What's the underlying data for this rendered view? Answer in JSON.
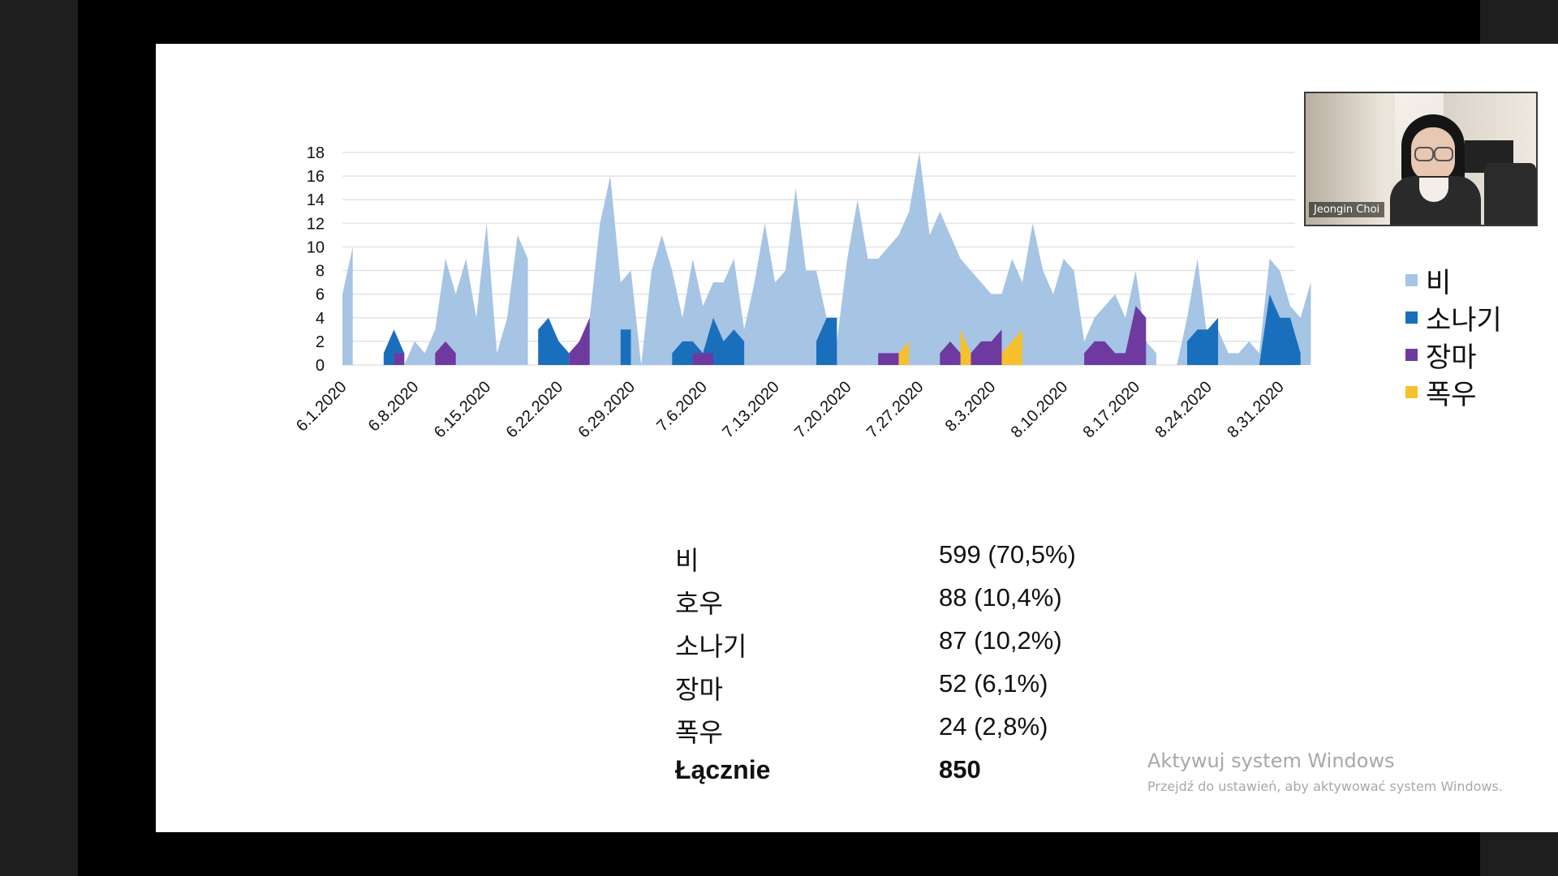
{
  "participant": {
    "name": "Jeongin Choi"
  },
  "watermark": {
    "title": "Aktywuj system Windows",
    "subtitle": "Przejdź do ustawień, aby aktywować system Windows."
  },
  "stats": [
    {
      "label": "비",
      "value": "599 (70,5%)"
    },
    {
      "label": "호우",
      "value": "88 (10,4%)"
    },
    {
      "label": "소나기",
      "value": "87 (10,2%)"
    },
    {
      "label": "장마",
      "value": "52 (6,1%)"
    },
    {
      "label": "폭우",
      "value": "24 (2,8%)"
    },
    {
      "label": "Łącznie",
      "value": "850"
    }
  ],
  "chart_data": {
    "type": "area",
    "grid": true,
    "legend_position": "right",
    "ylim": [
      0,
      18
    ],
    "yticks": [
      0,
      2,
      4,
      6,
      8,
      10,
      12,
      14,
      16,
      18
    ],
    "x_range": [
      0,
      92
    ],
    "xticks": [
      {
        "x": 0,
        "label": "6.1.2020"
      },
      {
        "x": 7,
        "label": "6.8.2020"
      },
      {
        "x": 14,
        "label": "6.15.2020"
      },
      {
        "x": 21,
        "label": "6.22.2020"
      },
      {
        "x": 28,
        "label": "6.29.2020"
      },
      {
        "x": 35,
        "label": "7.6.2020"
      },
      {
        "x": 42,
        "label": "7.13.2020"
      },
      {
        "x": 49,
        "label": "7.20.2020"
      },
      {
        "x": 56,
        "label": "7.27.2020"
      },
      {
        "x": 63,
        "label": "8.3.2020"
      },
      {
        "x": 70,
        "label": "8.10.2020"
      },
      {
        "x": 77,
        "label": "8.17.2020"
      },
      {
        "x": 84,
        "label": "8.24.2020"
      },
      {
        "x": 91,
        "label": "8.31.2020"
      }
    ],
    "series": [
      {
        "name": "비",
        "color": "#a6c4e4",
        "points": [
          [
            0,
            6
          ],
          [
            1,
            10
          ],
          [
            1,
            0
          ],
          [
            6,
            0
          ],
          [
            7,
            2
          ],
          [
            8,
            1
          ],
          [
            9,
            3
          ],
          [
            10,
            9
          ],
          [
            11,
            6
          ],
          [
            12,
            9
          ],
          [
            13,
            4
          ],
          [
            14,
            12
          ],
          [
            15,
            1
          ],
          [
            16,
            4
          ],
          [
            17,
            11
          ],
          [
            18,
            9
          ],
          [
            18,
            0
          ],
          [
            22,
            0
          ],
          [
            23,
            2
          ],
          [
            24,
            4
          ],
          [
            25,
            12
          ],
          [
            26,
            16
          ],
          [
            27,
            7
          ],
          [
            28,
            8
          ],
          [
            29,
            0
          ],
          [
            30,
            8
          ],
          [
            31,
            11
          ],
          [
            32,
            8
          ],
          [
            33,
            4
          ],
          [
            34,
            9
          ],
          [
            35,
            5
          ],
          [
            36,
            7
          ],
          [
            37,
            7
          ],
          [
            38,
            9
          ],
          [
            39,
            3
          ],
          [
            40,
            7
          ],
          [
            41,
            12
          ],
          [
            42,
            7
          ],
          [
            43,
            8
          ],
          [
            44,
            15
          ],
          [
            45,
            8
          ],
          [
            46,
            8
          ],
          [
            47,
            4
          ],
          [
            48,
            2
          ],
          [
            49,
            9
          ],
          [
            50,
            14
          ],
          [
            51,
            9
          ],
          [
            52,
            9
          ],
          [
            53,
            10
          ],
          [
            54,
            11
          ],
          [
            55,
            13
          ],
          [
            56,
            18
          ],
          [
            57,
            11
          ],
          [
            58,
            13
          ],
          [
            59,
            11
          ],
          [
            60,
            9
          ],
          [
            61,
            8
          ],
          [
            62,
            7
          ],
          [
            63,
            6
          ],
          [
            64,
            6
          ],
          [
            65,
            9
          ],
          [
            66,
            7
          ],
          [
            67,
            12
          ],
          [
            68,
            8
          ],
          [
            69,
            6
          ],
          [
            70,
            9
          ],
          [
            71,
            8
          ],
          [
            72,
            2
          ],
          [
            73,
            4
          ],
          [
            74,
            5
          ],
          [
            75,
            6
          ],
          [
            76,
            4
          ],
          [
            77,
            8
          ],
          [
            78,
            2
          ],
          [
            79,
            1
          ],
          [
            79,
            0
          ],
          [
            81,
            0
          ],
          [
            82,
            4
          ],
          [
            83,
            9
          ],
          [
            84,
            2
          ],
          [
            85,
            3
          ],
          [
            86,
            1
          ],
          [
            87,
            1
          ],
          [
            88,
            2
          ],
          [
            89,
            1
          ],
          [
            90,
            9
          ],
          [
            91,
            8
          ],
          [
            92,
            5
          ],
          [
            93,
            4
          ],
          [
            94,
            7
          ],
          [
            94,
            0
          ]
        ]
      },
      {
        "name": "소나기",
        "color": "#1a6fbd",
        "points": [
          [
            4,
            0
          ],
          [
            4,
            1
          ],
          [
            5,
            3
          ],
          [
            6,
            1
          ],
          [
            6,
            0
          ]
        ]
      },
      {
        "name": "소나기",
        "color": "#1a6fbd",
        "points": [
          [
            19,
            0
          ],
          [
            19,
            3
          ],
          [
            20,
            4
          ],
          [
            21,
            2
          ],
          [
            22,
            1
          ],
          [
            22,
            0
          ]
        ]
      },
      {
        "name": "소나기",
        "color": "#1a6fbd",
        "points": [
          [
            27,
            0
          ],
          [
            27,
            3
          ],
          [
            28,
            3
          ],
          [
            28,
            0
          ]
        ]
      },
      {
        "name": "소나기",
        "color": "#1a6fbd",
        "points": [
          [
            32,
            0
          ],
          [
            32,
            1
          ],
          [
            33,
            2
          ],
          [
            34,
            2
          ],
          [
            35,
            1
          ],
          [
            36,
            4
          ],
          [
            37,
            2
          ],
          [
            38,
            3
          ],
          [
            39,
            2
          ],
          [
            39,
            0
          ]
        ]
      },
      {
        "name": "소나기",
        "color": "#1a6fbd",
        "points": [
          [
            46,
            0
          ],
          [
            46,
            2
          ],
          [
            47,
            4
          ],
          [
            48,
            4
          ],
          [
            48,
            0
          ]
        ]
      },
      {
        "name": "소나기",
        "color": "#1a6fbd",
        "points": [
          [
            82,
            0
          ],
          [
            82,
            2
          ],
          [
            83,
            3
          ],
          [
            84,
            3
          ],
          [
            85,
            4
          ],
          [
            85,
            0
          ]
        ]
      },
      {
        "name": "소나기",
        "color": "#1a6fbd",
        "points": [
          [
            89,
            0
          ],
          [
            90,
            6
          ],
          [
            91,
            4
          ],
          [
            92,
            4
          ],
          [
            93,
            1
          ],
          [
            93,
            0
          ]
        ]
      },
      {
        "name": "장마",
        "color": "#6e3aa0",
        "points": [
          [
            5,
            0
          ],
          [
            5,
            1
          ],
          [
            6,
            1
          ],
          [
            6,
            0
          ]
        ]
      },
      {
        "name": "장마",
        "color": "#6e3aa0",
        "points": [
          [
            9,
            0
          ],
          [
            9,
            1
          ],
          [
            10,
            2
          ],
          [
            11,
            1
          ],
          [
            11,
            0
          ]
        ]
      },
      {
        "name": "장마",
        "color": "#6e3aa0",
        "points": [
          [
            22,
            0
          ],
          [
            22,
            1
          ],
          [
            23,
            2
          ],
          [
            24,
            4
          ],
          [
            24,
            0
          ]
        ]
      },
      {
        "name": "장마",
        "color": "#6e3aa0",
        "points": [
          [
            34,
            0
          ],
          [
            34,
            1
          ],
          [
            36,
            1
          ],
          [
            36,
            0
          ]
        ]
      },
      {
        "name": "장마",
        "color": "#6e3aa0",
        "points": [
          [
            52,
            0
          ],
          [
            52,
            1
          ],
          [
            54,
            1
          ],
          [
            54,
            0
          ]
        ]
      },
      {
        "name": "장마",
        "color": "#6e3aa0",
        "points": [
          [
            58,
            0
          ],
          [
            58,
            1
          ],
          [
            59,
            2
          ],
          [
            60,
            1
          ],
          [
            60,
            0
          ]
        ]
      },
      {
        "name": "장마",
        "color": "#6e3aa0",
        "points": [
          [
            61,
            0
          ],
          [
            61,
            1
          ],
          [
            62,
            2
          ],
          [
            63,
            2
          ],
          [
            64,
            3
          ],
          [
            64,
            0
          ]
        ]
      },
      {
        "name": "장마",
        "color": "#6e3aa0",
        "points": [
          [
            72,
            0
          ],
          [
            72,
            1
          ],
          [
            73,
            2
          ],
          [
            74,
            2
          ],
          [
            75,
            1
          ],
          [
            76,
            1
          ],
          [
            77,
            5
          ],
          [
            78,
            4
          ],
          [
            78,
            0
          ]
        ]
      },
      {
        "name": "폭우",
        "color": "#f6c02f",
        "points": [
          [
            54,
            0
          ],
          [
            54,
            1
          ],
          [
            55,
            2
          ],
          [
            55,
            0
          ]
        ]
      },
      {
        "name": "폭우",
        "color": "#f6c02f",
        "points": [
          [
            60,
            0
          ],
          [
            60,
            3
          ],
          [
            61,
            1
          ],
          [
            61,
            0
          ]
        ]
      },
      {
        "name": "폭우",
        "color": "#f6c02f",
        "points": [
          [
            64,
            0
          ],
          [
            64,
            1
          ],
          [
            65,
            2
          ],
          [
            66,
            3
          ],
          [
            66,
            0
          ]
        ]
      }
    ],
    "legend": [
      {
        "name": "비",
        "color": "#a6c4e4"
      },
      {
        "name": "소나기",
        "color": "#1a6fbd"
      },
      {
        "name": "장마",
        "color": "#6e3aa0"
      },
      {
        "name": "폭우",
        "color": "#f6c02f"
      }
    ]
  }
}
